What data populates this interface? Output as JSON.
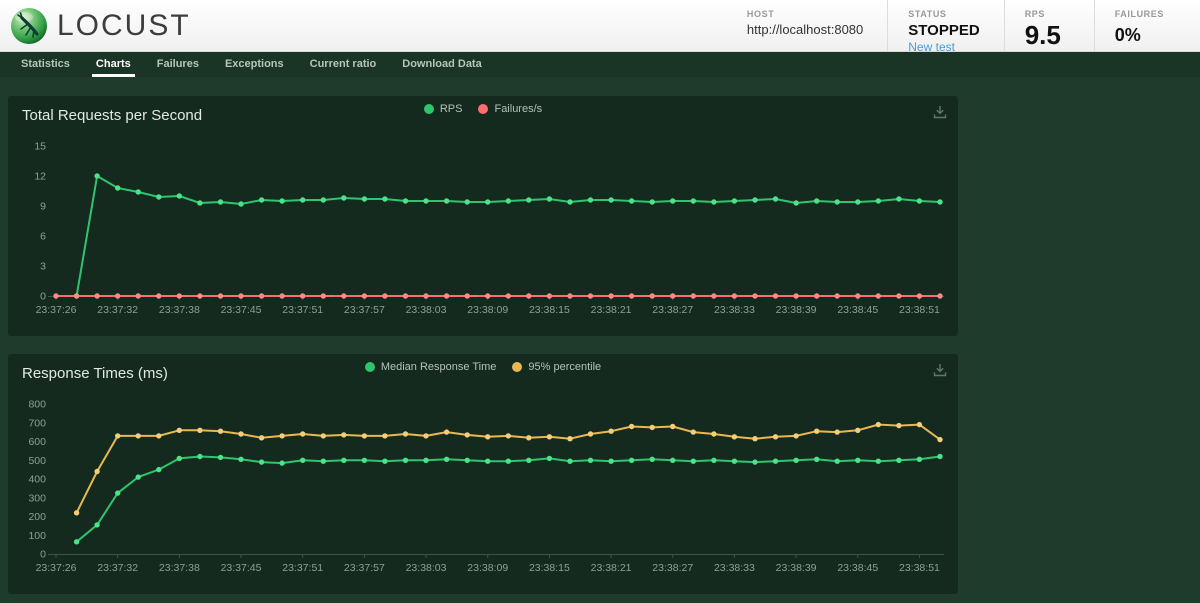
{
  "header": {
    "logo_text": "LOCUST",
    "stats": [
      {
        "label": "HOST",
        "value": "http://localhost:8080"
      },
      {
        "label": "STATUS",
        "value": "STOPPED",
        "link": "New test"
      },
      {
        "label": "RPS",
        "value": "9.5"
      },
      {
        "label": "FAILURES",
        "value": "0%"
      }
    ]
  },
  "nav": {
    "items": [
      {
        "label": "Statistics",
        "active": false
      },
      {
        "label": "Charts",
        "active": true
      },
      {
        "label": "Failures",
        "active": false
      },
      {
        "label": "Exceptions",
        "active": false
      },
      {
        "label": "Current ratio",
        "active": false
      },
      {
        "label": "Download Data",
        "active": false
      }
    ]
  },
  "colors": {
    "page_bg": "#1e3b2c",
    "panel_bg": "#142a1e",
    "nav_bg": "#1a3426",
    "green_series": "#2fc46e",
    "red_series": "#ff6d6d",
    "yellow_series": "#e9b850",
    "link_blue": "#42a0d4"
  },
  "charts": [
    {
      "title": "Total Requests per Second",
      "type": "line",
      "legend": [
        {
          "label": "RPS",
          "color": "#2fc46e"
        },
        {
          "label": "Failures/s",
          "color": "#ff6d6d"
        }
      ],
      "y_ticks": [
        0,
        3,
        6,
        9,
        12,
        15
      ],
      "y_max": 15,
      "x_tick_every": 3,
      "x_tick_labels": [
        "23:37:26",
        "23:37:32",
        "23:37:38",
        "23:37:45",
        "23:37:51",
        "23:37:57",
        "23:38:03",
        "23:38:09",
        "23:38:15",
        "23:38:21",
        "23:38:27",
        "23:38:33",
        "23:38:39",
        "23:38:45",
        "23:38:51"
      ],
      "series": [
        {
          "name": "RPS",
          "color": "#2fc46e",
          "point_color": "#4de289",
          "values": [
            null,
            0,
            12,
            10.8,
            10.4,
            9.9,
            10,
            9.3,
            9.4,
            9.2,
            9.6,
            9.5,
            9.6,
            9.6,
            9.8,
            9.7,
            9.7,
            9.5,
            9.5,
            9.5,
            9.4,
            9.4,
            9.5,
            9.6,
            9.7,
            9.4,
            9.6,
            9.6,
            9.5,
            9.4,
            9.5,
            9.5,
            9.4,
            9.5,
            9.6,
            9.7,
            9.3,
            9.5,
            9.4,
            9.4,
            9.5,
            9.7,
            9.5,
            9.4
          ]
        },
        {
          "name": "Failures/s",
          "color": "#ff6d6d",
          "point_color": "#ff8989",
          "values": [
            0,
            0,
            0,
            0,
            0,
            0,
            0,
            0,
            0,
            0,
            0,
            0,
            0,
            0,
            0,
            0,
            0,
            0,
            0,
            0,
            0,
            0,
            0,
            0,
            0,
            0,
            0,
            0,
            0,
            0,
            0,
            0,
            0,
            0,
            0,
            0,
            0,
            0,
            0,
            0,
            0,
            0,
            0,
            0
          ]
        }
      ]
    },
    {
      "title": "Response Times (ms)",
      "type": "line",
      "legend": [
        {
          "label": "Median Response Time",
          "color": "#2fc46e"
        },
        {
          "label": "95% percentile",
          "color": "#e9b850"
        }
      ],
      "y_ticks": [
        0,
        100,
        200,
        300,
        400,
        500,
        600,
        700,
        800
      ],
      "y_max": 800,
      "x_tick_every": 3,
      "x_tick_labels": [
        "23:37:26",
        "23:37:32",
        "23:37:38",
        "23:37:45",
        "23:37:51",
        "23:37:57",
        "23:38:03",
        "23:38:09",
        "23:38:15",
        "23:38:21",
        "23:38:27",
        "23:38:33",
        "23:38:39",
        "23:38:45",
        "23:38:51"
      ],
      "series": [
        {
          "name": "Median Response Time",
          "color": "#2fc46e",
          "point_color": "#4de289",
          "values": [
            null,
            65,
            155,
            325,
            410,
            450,
            510,
            520,
            515,
            505,
            490,
            485,
            500,
            495,
            500,
            500,
            495,
            500,
            500,
            505,
            500,
            495,
            495,
            500,
            510,
            495,
            500,
            495,
            500,
            505,
            500,
            495,
            500,
            495,
            490,
            495,
            500,
            505,
            495,
            500,
            495,
            500,
            505,
            520
          ]
        },
        {
          "name": "95% percentile",
          "color": "#e9b850",
          "point_color": "#f4cd7a",
          "values": [
            null,
            220,
            440,
            630,
            630,
            630,
            660,
            660,
            655,
            640,
            620,
            630,
            640,
            630,
            635,
            630,
            630,
            640,
            630,
            650,
            635,
            625,
            630,
            620,
            625,
            615,
            640,
            655,
            680,
            675,
            680,
            650,
            640,
            625,
            615,
            625,
            630,
            655,
            650,
            660,
            690,
            685,
            690,
            610
          ]
        }
      ]
    }
  ]
}
